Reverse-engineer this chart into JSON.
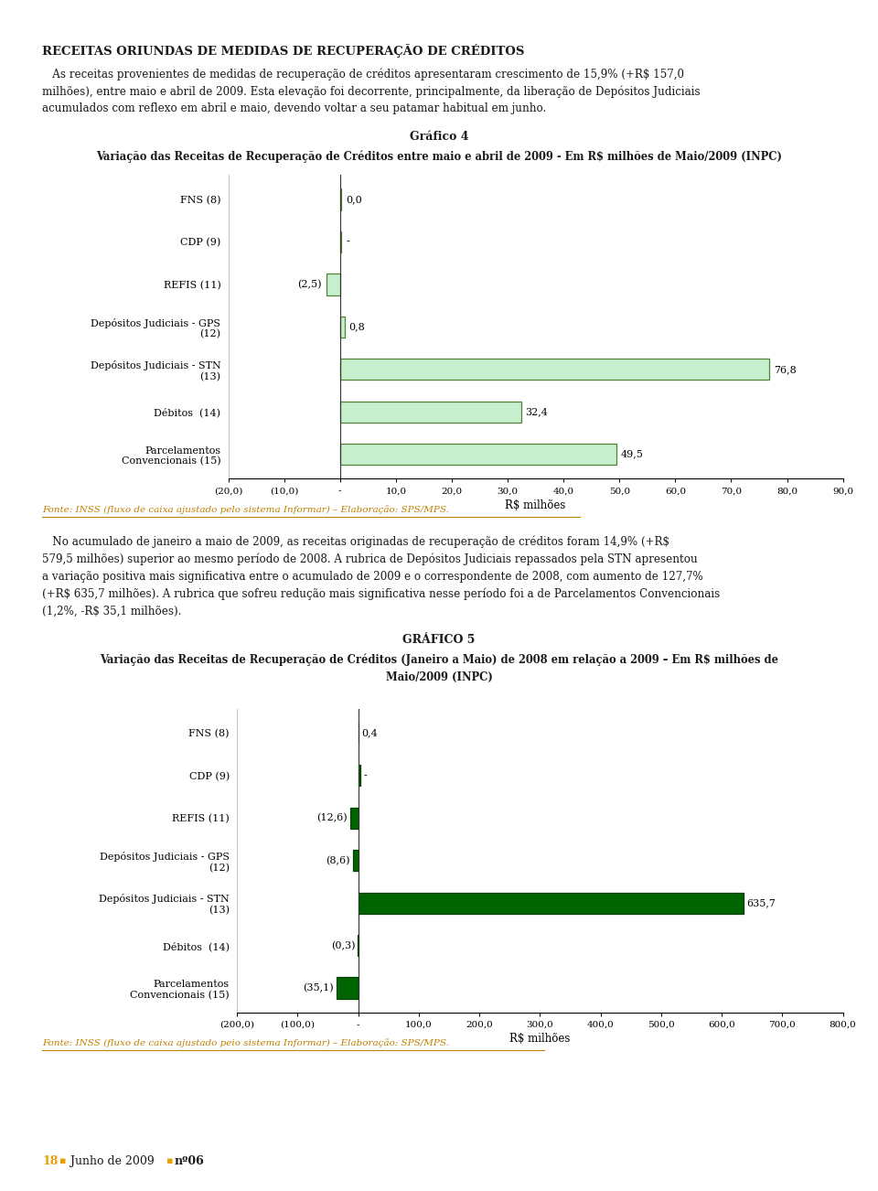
{
  "page_bg": "#ffffff",
  "header_color": "#e8a000",
  "section_title": "RECEITAS ORIUNDAS DE MEDIDAS DE RECUPERAÇÃO DE CRÉDITOS",
  "para1_lines": [
    "   As receitas provenientes de medidas de recuperação de créditos apresentaram crescimento de 15,9% (+R$ 157,0",
    "milhões), entre maio e abril de 2009. Esta elevação foi decorrente, principalmente, da liberação de Depósitos Judiciais",
    "acumulados com reflexo em abril e maio, devendo voltar a seu patamar habitual em junho."
  ],
  "chart1_title_line1": "Gráfico 4",
  "chart1_title_line2": "Variação das Receitas de Recuperação de Créditos entre maio e abril de 2009 - Em R$ milhões de Maio/2009 (INPC)",
  "chart1_categories": [
    "FNS (8)",
    "CDP (9)",
    "REFIS (11)",
    "Depósitos Judiciais - GPS\n(12)",
    "Depósitos Judiciais - STN\n(13)",
    "Débitos  (14)",
    "Parcelamentos\nConvencionais (15)"
  ],
  "chart1_values": [
    0.01,
    0.01,
    -2.5,
    0.8,
    76.8,
    32.4,
    49.5
  ],
  "chart1_labels": [
    "0,0",
    "-",
    "(2,5)",
    "0,8",
    "76,8",
    "32,4",
    "49,5"
  ],
  "chart1_xlim": [
    -20,
    90
  ],
  "chart1_xticks": [
    -20,
    -10,
    0,
    10,
    20,
    30,
    40,
    50,
    60,
    70,
    80,
    90
  ],
  "chart1_xtick_labels": [
    "(20,0)",
    "(10,0)",
    "-",
    "10,0",
    "20,0",
    "30,0",
    "40,0",
    "50,0",
    "60,0",
    "70,0",
    "80,0",
    "90,0"
  ],
  "chart1_xlabel": "R$ milhões",
  "chart1_bar_color": "#c6efce",
  "chart1_bar_edge_color": "#538135",
  "chart1_fonte": "Fonte: INSS (fluxo de caixa ajustado pelo sistema Informar) – Elaboração: SPS/MPS.",
  "chart1_fonte_color": "#c08000",
  "para2_lines": [
    "   No acumulado de janeiro a maio de 2009, as receitas originadas de recuperação de créditos foram 14,9% (+R$",
    "579,5 milhões) superior ao mesmo período de 2008. A rubrica de Depósitos Judiciais repassados pela STN apresentou",
    "a variação positiva mais significativa entre o acumulado de 2009 e o correspondente de 2008, com aumento de 127,7%",
    "(+R$ 635,7 milhões). A rubrica que sofreu redução mais significativa nesse período foi a de Parcelamentos Convencionais",
    "(1,2%, -R$ 35,1 milhões)."
  ],
  "chart2_title_line1": "GRÁFICO 5",
  "chart2_title_line2": "Variação das Receitas de Recuperação de Créditos (Janeiro a Maio) de 2008 em relação a 2009 – Em R$ milhões de",
  "chart2_title_line3": "Maio/2009 (INPC)",
  "chart2_categories": [
    "FNS (8)",
    "CDP (9)",
    "REFIS (11)",
    "Depósitos Judiciais - GPS\n(12)",
    "Depósitos Judiciais - STN\n(13)",
    "Débitos  (14)",
    "Parcelamentos\nConvencionais (15)"
  ],
  "chart2_values": [
    0.4,
    0.01,
    -12.6,
    -8.6,
    635.7,
    -0.3,
    -35.1
  ],
  "chart2_labels": [
    "0,4",
    "-",
    "(12,6)",
    "(8,6)",
    "635,7",
    "(0,3)",
    "(35,1)"
  ],
  "chart2_xlim": [
    -200,
    800
  ],
  "chart2_xticks": [
    -200,
    -100,
    0,
    100,
    200,
    300,
    400,
    500,
    600,
    700,
    800
  ],
  "chart2_xtick_labels": [
    "(200,0)",
    "(100,0)",
    "-",
    "100,0",
    "200,0",
    "300,0",
    "400,0",
    "500,0",
    "600,0",
    "700,0",
    "800,0"
  ],
  "chart2_xlabel": "R$ milhões",
  "chart2_bar_color": "#006400",
  "chart2_bar_edge_color": "#004000",
  "chart2_fonte": "Fonte: INSS (fluxo de caixa ajustado peio sistema Informar) – Elaboração: SPS/MPS.",
  "chart2_fonte_color": "#c08000",
  "footer_number": "18",
  "footer_text": " Junho de 2009 ",
  "footer_num2": "nº06",
  "footer_bullet_color": "#e8a000",
  "text_color": "#1a1a1a",
  "title_color": "#1a1a1a"
}
